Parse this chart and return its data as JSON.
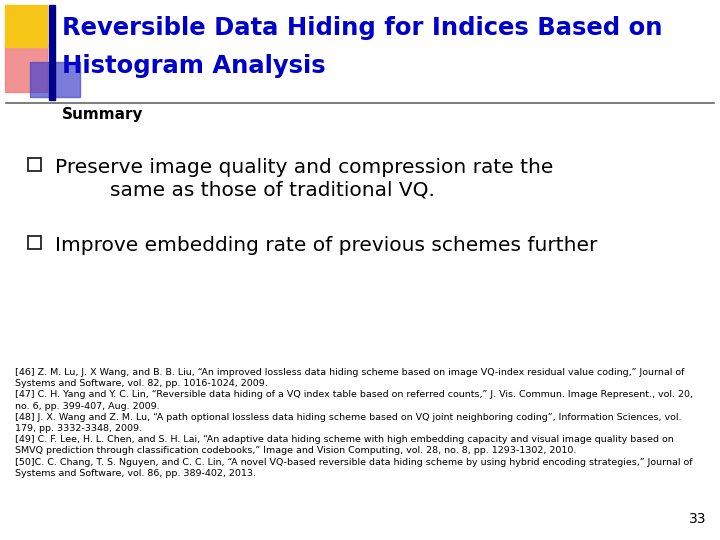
{
  "title_line1": "Reversible Data Hiding for Indices Based on",
  "title_line2": "Histogram Analysis",
  "title_color": "#0000CC",
  "title_fontsize": 17.5,
  "section_label": "Summary",
  "section_fontsize": 11,
  "bullet1_line1": "Preserve image quality and compression rate the",
  "bullet1_line2": "same as those of traditional VQ.",
  "bullet2": "Improve embedding rate of previous schemes further",
  "bullet_fontsize": 14.5,
  "refs_parts": [
    {
      "normal": "[46] Z. M. Lu, J. X Wang, and B. B. Liu, “An improved lossless data hiding scheme based on image VQ-index residual value coding,” ",
      "italic": "Journal of\nSystems and Software",
      "normal2": ", vol. 82, pp. 1016-1024, 2009."
    },
    {
      "normal": "[47] C. H. Yang and Y. C. Lin, “Reversible data hiding of a VQ index table based on referred counts,” ",
      "italic": "J. Vis. Commun. Image Represent.",
      "normal2": ", vol. 20,\nno. 6, pp. 399-407, Aug. 2009."
    },
    {
      "normal": "[48] J. X. Wang and Z. M. Lu, “A path optional lossless data hiding scheme based on VQ joint neighboring coding”, ",
      "italic": "Information Sciences",
      "normal2": ", vol.\n179, pp. 3332-3348, 2009."
    },
    {
      "normal": "[49] C. F. Lee, H. L. Chen, and S. H. Lai, “An adaptive data hiding scheme with high embedding capacity and visual image quality based on\nSMVQ prediction through classification codebooks,” ",
      "italic": "Image and Vision Computing",
      "normal2": ", vol. 28, no. 8, pp. 1293-1302, 2010."
    },
    {
      "normal": "[50]C. C. Chang, T. S. Nguyen, and C. C. Lin, “A novel VQ-based reversible data hiding scheme by using hybrid encoding strategies,” ",
      "italic": "Journal of\nSystems and Software",
      "normal2": ", vol. 86, pp. 389-402, 2013."
    }
  ],
  "ref_fontsize": 6.8,
  "page_number": "33",
  "bg_color": "#FFFFFF",
  "deco_yellow": "#F5C518",
  "deco_red_pink": "#F08080",
  "deco_blue_dark": "#00008B",
  "deco_blue_medium": "#4444CC",
  "separator_color": "#666666"
}
